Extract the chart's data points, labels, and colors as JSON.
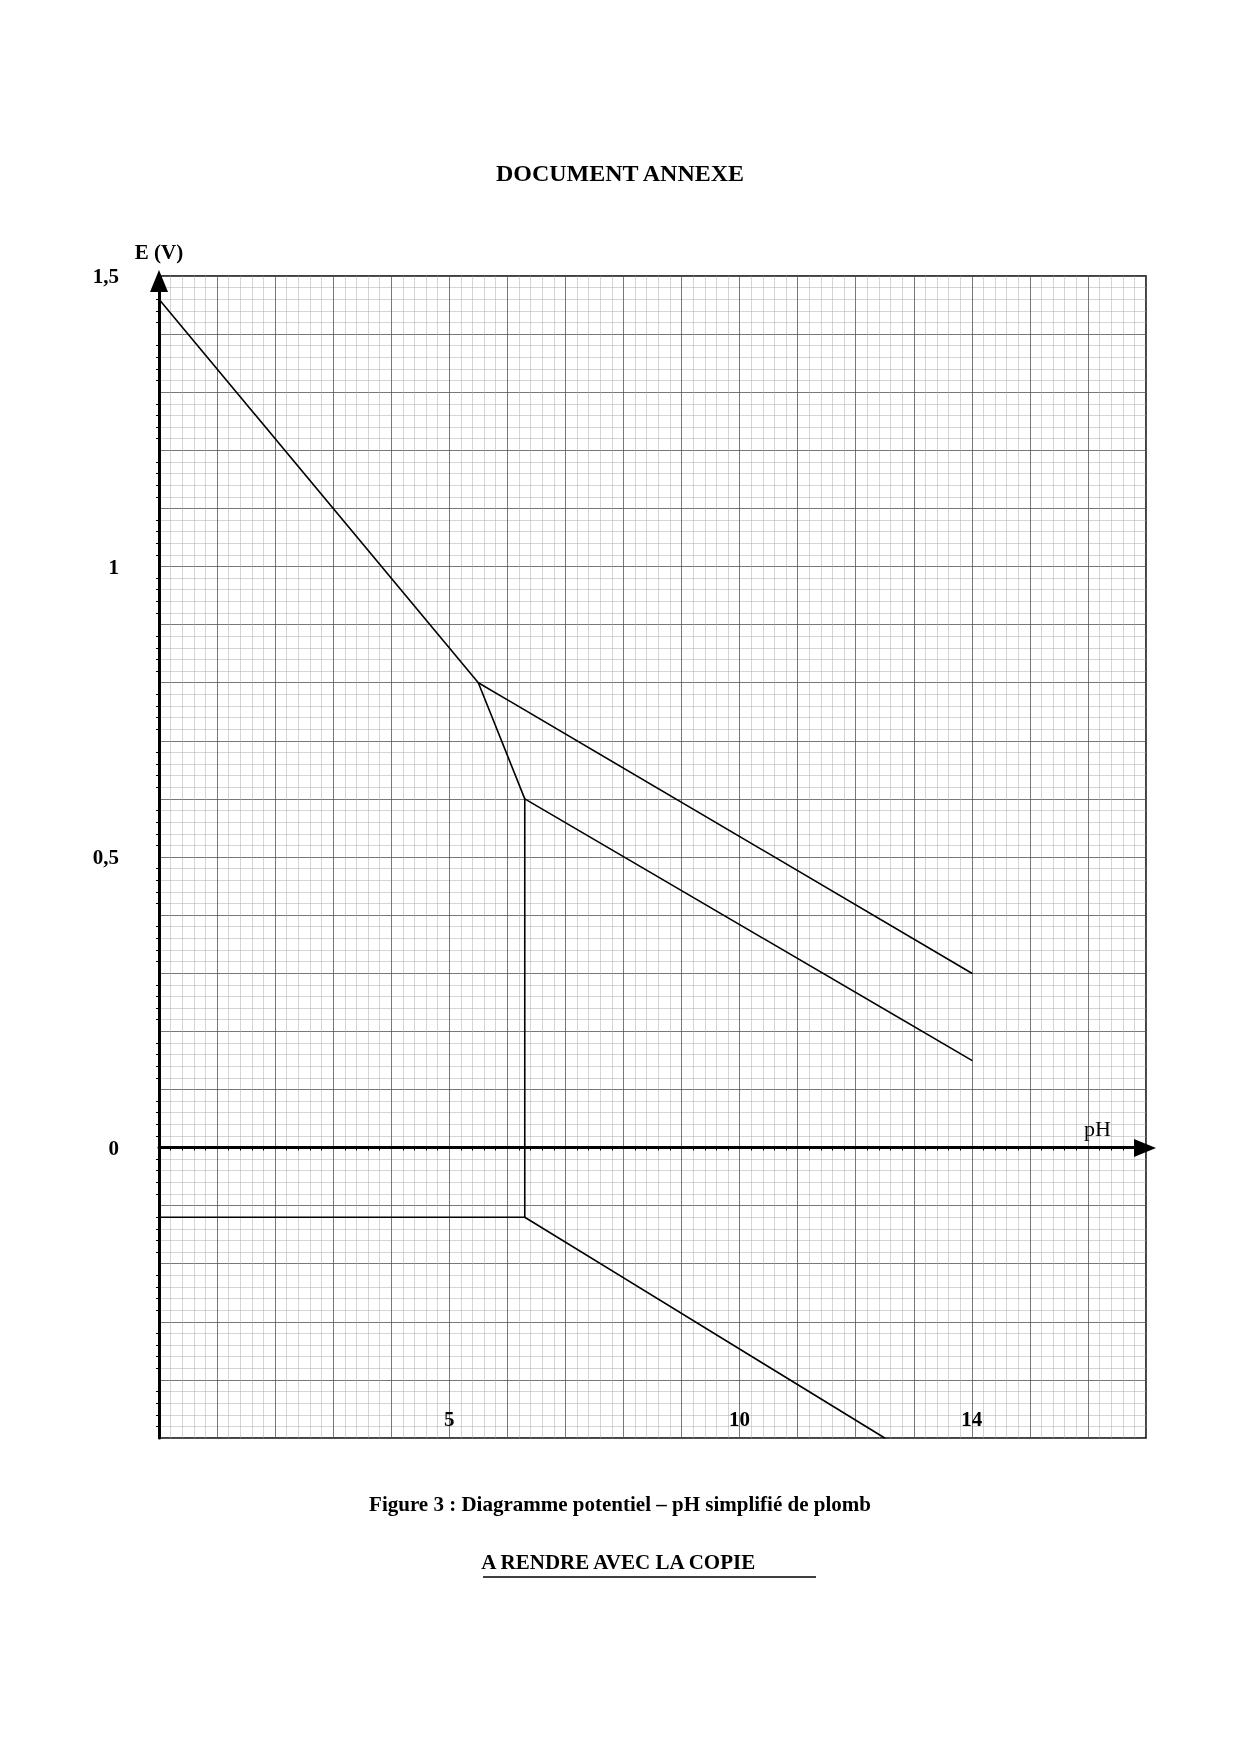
{
  "chart_data": {
    "type": "line",
    "title": "DOCUMENT ANNEXE",
    "xlabel": "pH",
    "ylabel": "E (V)",
    "annotations": [
      "Figure 3 : Diagramme potentiel – pH simplifié de plomb",
      "A RENDRE AVEC LA COPIE"
    ],
    "xlim": [
      0,
      17
    ],
    "xticks": [
      5,
      10,
      14
    ],
    "ylim": [
      -0.5,
      1.5
    ],
    "yticks": [
      {
        "value": 0,
        "label": "0"
      },
      {
        "value": 0.5,
        "label": "0,5"
      },
      {
        "value": 1,
        "label": "1"
      },
      {
        "value": 1.5,
        "label": "1,5"
      }
    ],
    "grid": true,
    "marker": "none",
    "line_style": "solid",
    "series": [
      {
        "color": "#000000",
        "x": [
          0,
          5.5,
          14
        ],
        "values": [
          1.46,
          0.8,
          0.3
        ]
      },
      {
        "color": "#000000",
        "x": [
          5.5,
          6.3,
          14
        ],
        "values": [
          0.8,
          0.6,
          0.15
        ]
      },
      {
        "color": "#000000",
        "x": [
          6.3,
          6.3
        ],
        "values": [
          0.6,
          -0.12
        ]
      },
      {
        "color": "#000000",
        "x": [
          0,
          6.3,
          12.5
        ],
        "values": [
          -0.12,
          -0.12,
          -0.5
        ]
      }
    ]
  }
}
